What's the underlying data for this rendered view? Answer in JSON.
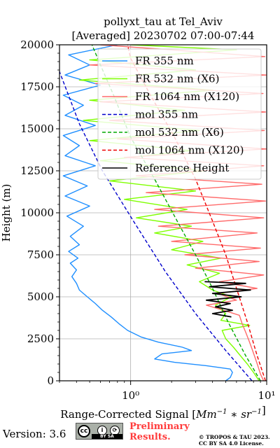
{
  "chart_data": {
    "type": "line",
    "title": "pollyxt_tau at Tel_Aviv",
    "subtitle": "[Averaged] 20230702 07:00-07:44",
    "xlabel_prefix": "Range-Corrected Signal [",
    "xlabel_math": "Mm^-1 * sr^-1",
    "xlabel_suffix": "]",
    "ylabel": "Height (m)",
    "x_scale": "log",
    "xlim": [
      0.3,
      10
    ],
    "ylim": [
      0,
      20000
    ],
    "x_ticks": [
      {
        "value": 1,
        "label": "10⁰"
      },
      {
        "value": 10,
        "label": "10¹"
      }
    ],
    "y_ticks": [
      0,
      2500,
      5000,
      7500,
      10000,
      12500,
      15000,
      17500,
      20000
    ],
    "grid": true,
    "legend_placement": "top-right",
    "series": [
      {
        "name": "FR 355 nm",
        "color": "#1f8fff",
        "style": "solid",
        "points": [
          [
            5.0,
            0
          ],
          [
            5.4,
            200
          ],
          [
            5.6,
            500
          ],
          [
            5.4,
            700
          ],
          [
            3.6,
            900
          ],
          [
            2.1,
            1100
          ],
          [
            1.5,
            1300
          ],
          [
            1.7,
            1600
          ],
          [
            2.8,
            1800
          ],
          [
            2.4,
            2000
          ],
          [
            1.6,
            2300
          ],
          [
            1.2,
            2600
          ],
          [
            0.95,
            3000
          ],
          [
            0.82,
            3400
          ],
          [
            0.72,
            3800
          ],
          [
            0.62,
            4200
          ],
          [
            0.55,
            4600
          ],
          [
            0.48,
            5000
          ],
          [
            0.42,
            5400
          ],
          [
            0.4,
            5800
          ],
          [
            0.37,
            6200
          ],
          [
            0.4,
            6600
          ],
          [
            0.36,
            7000
          ],
          [
            0.41,
            7300
          ],
          [
            0.35,
            7700
          ],
          [
            0.42,
            8100
          ],
          [
            0.36,
            8600
          ],
          [
            0.45,
            9200
          ],
          [
            0.34,
            9800
          ],
          [
            0.5,
            10400
          ],
          [
            0.33,
            11000
          ],
          [
            0.48,
            11600
          ],
          [
            0.32,
            12200
          ],
          [
            0.55,
            12800
          ],
          [
            0.33,
            13400
          ],
          [
            0.42,
            14000
          ],
          [
            0.32,
            14600
          ],
          [
            0.55,
            15200
          ],
          [
            0.33,
            15800
          ],
          [
            0.45,
            16400
          ],
          [
            0.32,
            17000
          ],
          [
            0.6,
            17600
          ],
          [
            0.33,
            18200
          ],
          [
            0.5,
            18800
          ],
          [
            0.35,
            19400
          ],
          [
            0.8,
            20000
          ]
        ]
      },
      {
        "name": "FR 532 nm (X6)",
        "color": "#7fff00",
        "style": "solid",
        "points": [
          [
            8.8,
            0
          ],
          [
            8.0,
            500
          ],
          [
            7.2,
            1000
          ],
          [
            6.4,
            1500
          ],
          [
            5.7,
            2000
          ],
          [
            5.0,
            2500
          ],
          [
            4.7,
            3000
          ],
          [
            7.5,
            3300
          ],
          [
            4.6,
            3600
          ],
          [
            5.0,
            4000
          ],
          [
            4.2,
            4500
          ],
          [
            5.5,
            5000
          ],
          [
            4.0,
            5400
          ],
          [
            3.2,
            5900
          ],
          [
            4.5,
            6400
          ],
          [
            2.6,
            6900
          ],
          [
            4.6,
            7300
          ],
          [
            2.0,
            7800
          ],
          [
            3.4,
            8300
          ],
          [
            1.5,
            8800
          ],
          [
            2.8,
            9200
          ],
          [
            1.1,
            9700
          ],
          [
            2.6,
            10200
          ],
          [
            0.9,
            10800
          ],
          [
            3.0,
            11300
          ],
          [
            0.7,
            11900
          ],
          [
            3.5,
            12500
          ],
          [
            0.6,
            13100
          ],
          [
            2.8,
            13700
          ],
          [
            0.5,
            14300
          ],
          [
            3.2,
            14900
          ],
          [
            0.45,
            15500
          ],
          [
            2.5,
            16100
          ],
          [
            0.5,
            16700
          ],
          [
            4.0,
            17300
          ],
          [
            0.42,
            17900
          ],
          [
            3.0,
            18500
          ],
          [
            0.5,
            19100
          ],
          [
            6.0,
            19700
          ],
          [
            1.0,
            20000
          ]
        ]
      },
      {
        "name": "FR 1064 nm (X120)",
        "color": "#ff6b6b",
        "style": "solid",
        "points": [
          [
            9.5,
            0
          ],
          [
            9.0,
            400
          ],
          [
            8.6,
            900
          ],
          [
            8.2,
            1400
          ],
          [
            7.8,
            1900
          ],
          [
            7.4,
            2400
          ],
          [
            7.0,
            2900
          ],
          [
            6.6,
            3400
          ],
          [
            6.3,
            3900
          ],
          [
            4.8,
            4200
          ],
          [
            3.6,
            4500
          ],
          [
            6.0,
            4800
          ],
          [
            4.4,
            5200
          ],
          [
            8.5,
            5500
          ],
          [
            4.5,
            5900
          ],
          [
            9.5,
            6300
          ],
          [
            3.0,
            6700
          ],
          [
            8.8,
            7100
          ],
          [
            2.5,
            7500
          ],
          [
            9.0,
            7900
          ],
          [
            2.0,
            8300
          ],
          [
            8.5,
            8800
          ],
          [
            1.6,
            9200
          ],
          [
            9.5,
            9700
          ],
          [
            1.5,
            10200
          ],
          [
            9.8,
            10700
          ],
          [
            1.3,
            11200
          ],
          [
            9.2,
            11700
          ],
          [
            1.1,
            12200
          ],
          [
            9.5,
            12800
          ],
          [
            0.9,
            13300
          ],
          [
            9.9,
            13800
          ],
          [
            0.8,
            14400
          ],
          [
            9.6,
            14900
          ],
          [
            0.7,
            15500
          ],
          [
            9.8,
            16000
          ],
          [
            0.6,
            16600
          ],
          [
            9.4,
            17100
          ],
          [
            0.55,
            17700
          ],
          [
            9.9,
            18200
          ],
          [
            0.5,
            18800
          ],
          [
            9.7,
            19300
          ],
          [
            0.6,
            20000
          ]
        ]
      },
      {
        "name": "mol 355 nm",
        "color": "#0000cc",
        "style": "dashed",
        "points": [
          [
            7.8,
            0
          ],
          [
            5.0,
            1800
          ],
          [
            3.0,
            4000
          ],
          [
            1.8,
            6500
          ],
          [
            1.05,
            9500
          ],
          [
            0.62,
            12500
          ],
          [
            0.42,
            15300
          ],
          [
            0.3,
            18400
          ]
        ]
      },
      {
        "name": "mol 532 nm (X6)",
        "color": "#00aa00",
        "style": "dashed",
        "points": [
          [
            9.0,
            0
          ],
          [
            7.0,
            1500
          ],
          [
            5.2,
            3500
          ],
          [
            4.0,
            5500
          ],
          [
            3.0,
            7500
          ],
          [
            2.2,
            9500
          ],
          [
            1.5,
            12000
          ],
          [
            1.0,
            14500
          ],
          [
            0.75,
            17000
          ],
          [
            0.6,
            18800
          ],
          [
            0.52,
            20000
          ]
        ]
      },
      {
        "name": "mol 1064 nm (X120)",
        "color": "#ee0000",
        "style": "dashed",
        "points": [
          [
            9.8,
            0
          ],
          [
            8.5,
            1500
          ],
          [
            7.2,
            3500
          ],
          [
            6.0,
            5500
          ],
          [
            5.0,
            7500
          ],
          [
            4.0,
            9500
          ],
          [
            3.0,
            12000
          ],
          [
            2.1,
            14500
          ],
          [
            1.4,
            17000
          ],
          [
            1.0,
            19200
          ],
          [
            0.95,
            20000
          ]
        ]
      },
      {
        "name": "Reference Height",
        "color": "#000000",
        "style": "solid",
        "points": [
          [
            5.5,
            3800
          ],
          [
            4.0,
            4000
          ],
          [
            5.6,
            4200
          ],
          [
            4.2,
            4400
          ],
          [
            5.4,
            4600
          ],
          [
            3.6,
            4800
          ],
          [
            6.5,
            5000
          ],
          [
            4.0,
            5200
          ],
          [
            7.6,
            5400
          ],
          [
            3.8,
            5600
          ],
          [
            7.0,
            5800
          ],
          [
            3.5,
            5900
          ]
        ]
      }
    ]
  },
  "footer": {
    "version": "Version: 3.6",
    "license_badge": "BY SA",
    "cc_logo": "cc",
    "by_icon": "i",
    "sa_icon": "⟳",
    "preliminary_1": "Preliminary",
    "preliminary_2": "Results.",
    "copyright_1": "© TROPOS & TAU 2023.",
    "copyright_2": "CC BY SA 4.0 License."
  }
}
